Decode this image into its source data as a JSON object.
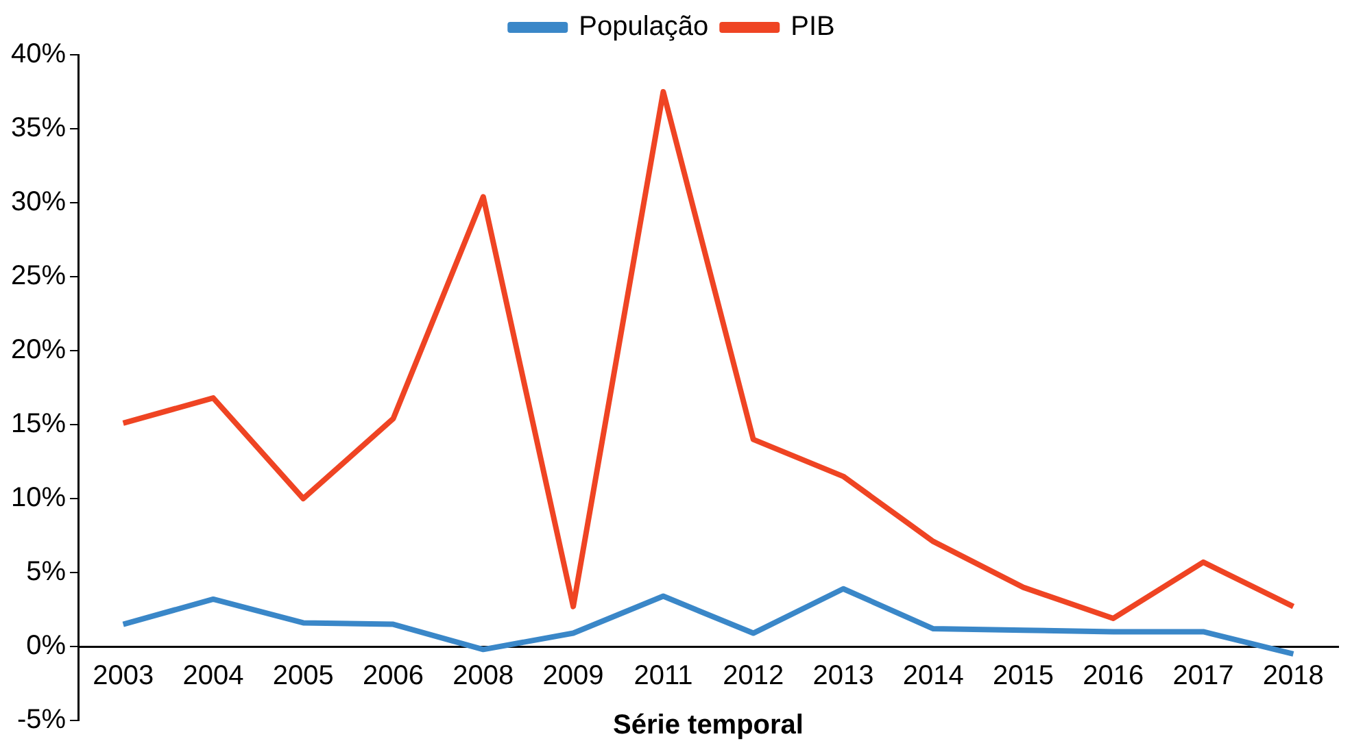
{
  "chart_data": {
    "type": "line",
    "xlabel": "Série temporal",
    "legend": "top",
    "marker": "none",
    "line_style": "solid",
    "categories": [
      "2003",
      "2004",
      "2005",
      "2006",
      "2008",
      "2009",
      "2011",
      "2012",
      "2013",
      "2014",
      "2015",
      "2016",
      "2017",
      "2018"
    ],
    "series": [
      {
        "name": "População",
        "color": "#3a87c8",
        "values": [
          1.5,
          3.2,
          1.6,
          1.5,
          -0.2,
          0.9,
          3.4,
          0.9,
          3.9,
          1.2,
          1.1,
          1.0,
          1.0,
          -0.5
        ]
      },
      {
        "name": "PIB",
        "color": "#ef4423",
        "values": [
          15.1,
          16.8,
          10.0,
          15.4,
          30.4,
          2.7,
          37.5,
          14.0,
          11.5,
          7.1,
          4.0,
          1.9,
          5.7,
          2.7
        ]
      }
    ],
    "ylim": [
      -5,
      40
    ],
    "yticks": [
      {
        "value": -5,
        "label": "-5%"
      },
      {
        "value": 0,
        "label": "0%"
      },
      {
        "value": 5,
        "label": "5%"
      },
      {
        "value": 10,
        "label": "10%"
      },
      {
        "value": 15,
        "label": "15%"
      },
      {
        "value": 20,
        "label": "20%"
      },
      {
        "value": 25,
        "label": "25%"
      },
      {
        "value": 30,
        "label": "30%"
      },
      {
        "value": 35,
        "label": "35%"
      },
      {
        "value": 40,
        "label": "40%"
      }
    ]
  }
}
